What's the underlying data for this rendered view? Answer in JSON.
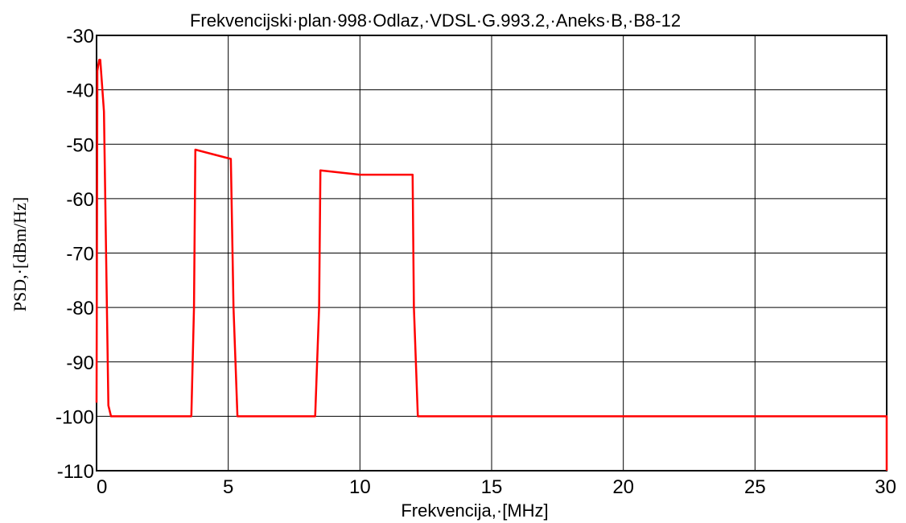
{
  "chart_data": {
    "type": "line",
    "title": "Frekvencijski·plan·998·Odlaz,·VDSL·G.993.2,·Aneks·B,·B8-12",
    "xlabel": "Frekvencija,·[MHz]",
    "ylabel": "PSD,·[dBm/Hz]",
    "xlim": [
      0,
      30
    ],
    "ylim": [
      -110,
      -30
    ],
    "xticks": [
      0,
      5,
      10,
      15,
      20,
      25,
      30
    ],
    "yticks": [
      -30,
      -40,
      -50,
      -60,
      -70,
      -80,
      -90,
      -100,
      -110
    ],
    "grid": true,
    "legend": "none",
    "series": [
      {
        "color": "#ff0000",
        "points": [
          [
            0.0,
            -97.5
          ],
          [
            0.03,
            -36.5
          ],
          [
            0.1,
            -34.5
          ],
          [
            0.14,
            -34.5
          ],
          [
            0.28,
            -44
          ],
          [
            0.45,
            -98
          ],
          [
            0.55,
            -100
          ],
          [
            3.6,
            -100
          ],
          [
            3.7,
            -80
          ],
          [
            3.75,
            -51
          ],
          [
            5.1,
            -52.7
          ],
          [
            5.2,
            -80
          ],
          [
            5.35,
            -100
          ],
          [
            8.3,
            -100
          ],
          [
            8.45,
            -80
          ],
          [
            8.5,
            -54.8
          ],
          [
            10.0,
            -55.6
          ],
          [
            12.0,
            -55.6
          ],
          [
            12.05,
            -80
          ],
          [
            12.2,
            -100
          ],
          [
            30.0,
            -100
          ],
          [
            30.0,
            -110
          ]
        ]
      }
    ]
  }
}
